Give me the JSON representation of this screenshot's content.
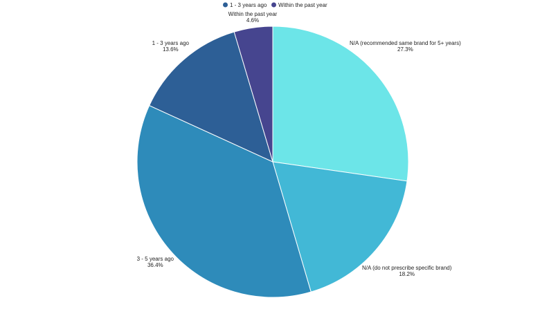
{
  "chart_data": {
    "type": "pie",
    "legend_position": "top-center",
    "legend": [
      {
        "name": "1 - 3 years ago",
        "color": "#2d5f96"
      },
      {
        "name": "Within the past year",
        "color": "#46458f"
      }
    ],
    "slices": [
      {
        "label": "N/A (recommended same brand for 5+ years)",
        "value_label": "27.3%",
        "value": 27.3,
        "color": "#6ce5e8"
      },
      {
        "label": "N/A (do not prescribe specific brand)",
        "value_label": "18.2%",
        "value": 18.2,
        "color": "#42b8d6"
      },
      {
        "label": "3 - 5 years ago",
        "value_label": "36.4%",
        "value": 36.4,
        "color": "#2e8bba"
      },
      {
        "label": "1 - 3 years ago",
        "value_label": "13.6%",
        "value": 13.6,
        "color": "#2d5f96"
      },
      {
        "label": "Within the past year",
        "value_label": "4.6%",
        "value": 4.6,
        "color": "#46458f"
      }
    ]
  }
}
